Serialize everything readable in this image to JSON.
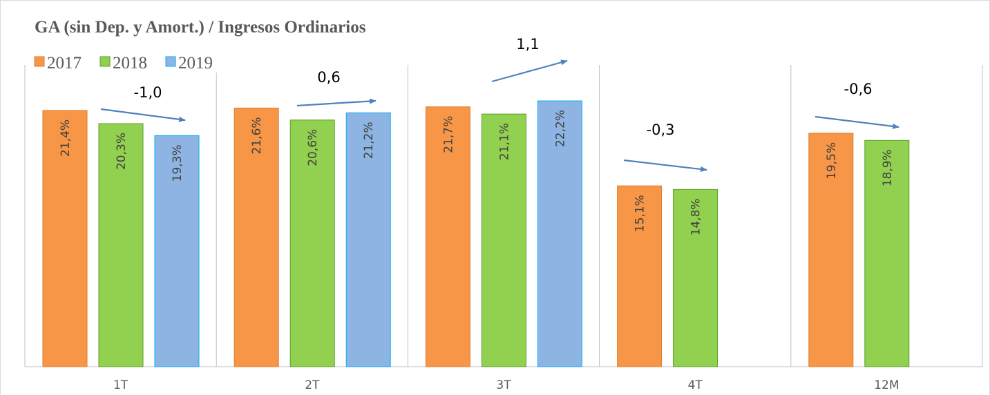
{
  "chart_data": {
    "type": "bar",
    "title": "GA (sin Dep. y Amort.) / Ingresos Ordinarios",
    "categories": [
      "1T",
      "2T",
      "3T",
      "4T",
      "12M"
    ],
    "series": [
      {
        "name": "2017",
        "color": "#f79646",
        "stroke": "#e07b2e",
        "values": [
          21.4,
          21.6,
          21.7,
          15.1,
          19.5
        ],
        "labels": [
          "21,4%",
          "21,6%",
          "21,7%",
          "15,1%",
          "19,5%"
        ]
      },
      {
        "name": "2018",
        "color": "#92d050",
        "stroke": "#5a9e28",
        "values": [
          20.3,
          20.6,
          21.1,
          14.8,
          18.9
        ],
        "labels": [
          "20,3%",
          "20,6%",
          "21,1%",
          "14,8%",
          "18,9%"
        ]
      },
      {
        "name": "2019",
        "color": "#8eb4e3",
        "stroke": "#00b0f0",
        "values": [
          19.3,
          21.2,
          22.2,
          null,
          null
        ],
        "labels": [
          "19,3%",
          "21,2%",
          "22,2%",
          "",
          ""
        ]
      }
    ],
    "annotations": [
      {
        "category": "1T",
        "text": "-1,0"
      },
      {
        "category": "2T",
        "text": "0,6"
      },
      {
        "category": "3T",
        "text": "1,1"
      },
      {
        "category": "4T",
        "text": "-0,3"
      },
      {
        "category": "12M",
        "text": "-0,6"
      }
    ],
    "ylim": [
      0,
      24
    ],
    "legend_position": "top-left",
    "grid": false,
    "arrow_color": "#4f81bd",
    "axis_color": "#bfbfbf"
  }
}
